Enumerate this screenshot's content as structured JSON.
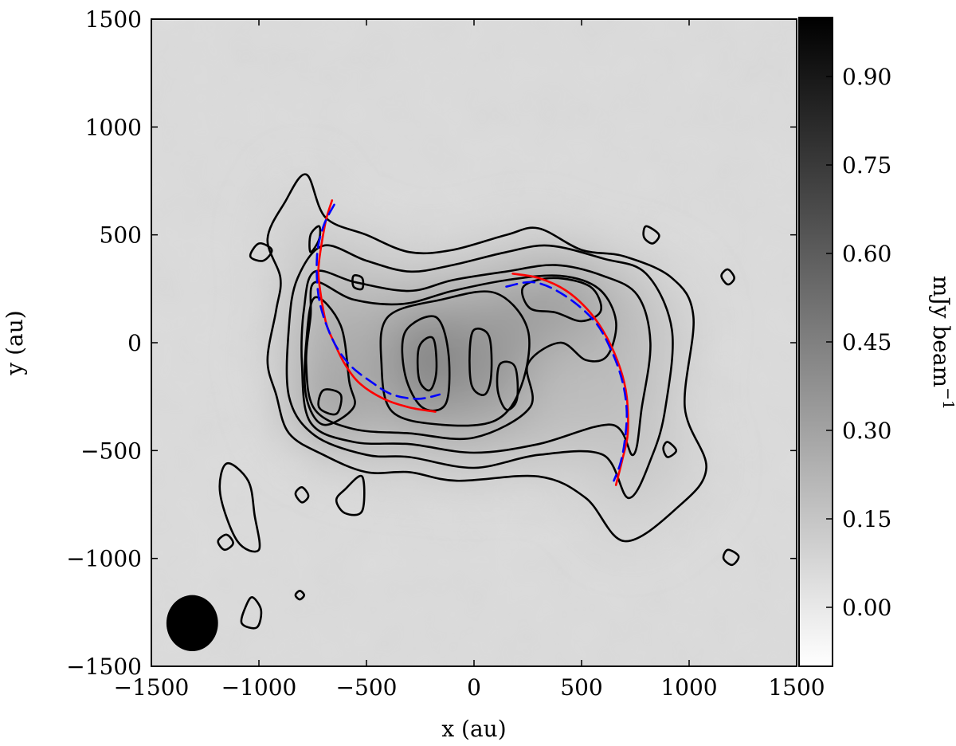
{
  "chart_data": {
    "type": "heatmap",
    "title": "",
    "xlabel": "x (au)",
    "ylabel": "y (au)",
    "xlim": [
      -1500,
      1500
    ],
    "ylim": [
      -1500,
      1500
    ],
    "xticks": [
      -1500,
      -1000,
      -500,
      0,
      500,
      1000,
      1500
    ],
    "yticks": [
      -1500,
      -1000,
      -500,
      0,
      500,
      1000,
      1500
    ],
    "xtick_labels": [
      "−1500",
      "−1000",
      "−500",
      "0",
      "500",
      "1000",
      "1500"
    ],
    "ytick_labels": [
      "−1500",
      "−1000",
      "−500",
      "0",
      "500",
      "1000",
      "1500"
    ],
    "colormap": "gray_r",
    "colorbar": {
      "label": "mJy beam",
      "label_superscript": "−1",
      "range": [
        -0.1,
        1.0
      ],
      "ticks": [
        0.0,
        0.15,
        0.3,
        0.45,
        0.6,
        0.75,
        0.9
      ],
      "tick_labels": [
        "0.00",
        "0.15",
        "0.30",
        "0.45",
        "0.60",
        "0.75",
        "0.90"
      ]
    },
    "background_level": 0.05,
    "contour_color": "#000000",
    "emission_peaks": [
      {
        "x": -220,
        "y": -80,
        "value": 0.55
      },
      {
        "x": 50,
        "y": -60,
        "value": 0.42
      },
      {
        "x": -680,
        "y": -300,
        "value": 0.38
      },
      {
        "x": 300,
        "y": 170,
        "value": 0.38
      },
      {
        "x": 480,
        "y": 200,
        "value": 0.33
      },
      {
        "x": 130,
        "y": -130,
        "value": 0.36
      }
    ],
    "contours": [
      {
        "level": 1,
        "points": [
          [
            -690,
            580
          ],
          [
            -500,
            500
          ],
          [
            -300,
            420
          ],
          [
            -100,
            430
          ],
          [
            150,
            500
          ],
          [
            300,
            530
          ],
          [
            500,
            430
          ],
          [
            700,
            400
          ],
          [
            920,
            300
          ],
          [
            1020,
            120
          ],
          [
            980,
            -300
          ],
          [
            1080,
            -580
          ],
          [
            950,
            -760
          ],
          [
            700,
            -920
          ],
          [
            520,
            -720
          ],
          [
            300,
            -620
          ],
          [
            -80,
            -640
          ],
          [
            -300,
            -600
          ],
          [
            -500,
            -600
          ],
          [
            -700,
            -520
          ],
          [
            -860,
            -420
          ],
          [
            -920,
            -240
          ],
          [
            -960,
            -80
          ],
          [
            -920,
            150
          ],
          [
            -900,
            300
          ],
          [
            -960,
            480
          ],
          [
            -880,
            650
          ],
          [
            -780,
            780
          ]
        ]
      },
      {
        "level": 2,
        "points": [
          [
            -700,
            450
          ],
          [
            -500,
            380
          ],
          [
            -300,
            330
          ],
          [
            -100,
            360
          ],
          [
            150,
            420
          ],
          [
            350,
            450
          ],
          [
            600,
            390
          ],
          [
            800,
            320
          ],
          [
            920,
            60
          ],
          [
            890,
            -300
          ],
          [
            830,
            -520
          ],
          [
            720,
            -720
          ],
          [
            600,
            -520
          ],
          [
            300,
            -520
          ],
          [
            0,
            -580
          ],
          [
            -300,
            -530
          ],
          [
            -500,
            -520
          ],
          [
            -740,
            -430
          ],
          [
            -860,
            -250
          ],
          [
            -860,
            80
          ],
          [
            -820,
            300
          ]
        ]
      },
      {
        "level": 3,
        "points": [
          [
            -740,
            330
          ],
          [
            -550,
            280
          ],
          [
            -300,
            240
          ],
          [
            -100,
            290
          ],
          [
            150,
            330
          ],
          [
            380,
            360
          ],
          [
            600,
            310
          ],
          [
            760,
            220
          ],
          [
            820,
            0
          ],
          [
            780,
            -300
          ],
          [
            740,
            -520
          ],
          [
            640,
            -380
          ],
          [
            300,
            -470
          ],
          [
            0,
            -510
          ],
          [
            -300,
            -470
          ],
          [
            -560,
            -460
          ],
          [
            -760,
            -370
          ],
          [
            -800,
            -100
          ],
          [
            -790,
            160
          ]
        ]
      },
      {
        "level": 4,
        "points": [
          [
            -740,
            280
          ],
          [
            -560,
            200
          ],
          [
            -330,
            180
          ],
          [
            -100,
            240
          ],
          [
            150,
            290
          ],
          [
            400,
            310
          ],
          [
            580,
            250
          ],
          [
            660,
            100
          ],
          [
            620,
            -60
          ],
          [
            520,
            -80
          ],
          [
            400,
            0
          ],
          [
            250,
            -100
          ],
          [
            260,
            -300
          ],
          [
            0,
            -440
          ],
          [
            -300,
            -420
          ],
          [
            -560,
            -400
          ],
          [
            -740,
            -310
          ],
          [
            -780,
            -100
          ],
          [
            -760,
            120
          ]
        ]
      },
      {
        "level": 5,
        "points": [
          [
            -740,
            210
          ],
          [
            -620,
            80
          ],
          [
            -580,
            -180
          ],
          [
            -560,
            -300
          ],
          [
            -700,
            -380
          ],
          [
            -780,
            -250
          ],
          [
            -780,
            0
          ]
        ]
      },
      {
        "level": 6,
        "points": [
          [
            -400,
            120
          ],
          [
            -150,
            200
          ],
          [
            100,
            230
          ],
          [
            250,
            60
          ],
          [
            220,
            -200
          ],
          [
            100,
            -360
          ],
          [
            -150,
            -380
          ],
          [
            -380,
            -320
          ],
          [
            -430,
            -100
          ]
        ]
      },
      {
        "level": 7,
        "points": [
          [
            -320,
            50
          ],
          [
            -180,
            120
          ],
          [
            -120,
            -40
          ],
          [
            -130,
            -280
          ],
          [
            -240,
            -300
          ],
          [
            -320,
            -150
          ]
        ]
      },
      {
        "level": 8,
        "points": [
          [
            -255,
            -20
          ],
          [
            -190,
            20
          ],
          [
            -175,
            -130
          ],
          [
            -205,
            -220
          ],
          [
            -255,
            -170
          ]
        ]
      },
      {
        "level": 9,
        "points": [
          [
            230,
            260
          ],
          [
            370,
            300
          ],
          [
            540,
            260
          ],
          [
            590,
            150
          ],
          [
            500,
            100
          ],
          [
            380,
            140
          ],
          [
            260,
            160
          ]
        ]
      },
      {
        "level": 10,
        "points": [
          [
            0,
            60
          ],
          [
            70,
            30
          ],
          [
            80,
            -150
          ],
          [
            50,
            -240
          ],
          [
            -10,
            -200
          ],
          [
            -20,
            -40
          ]
        ]
      },
      {
        "level": 11,
        "points": [
          [
            120,
            -100
          ],
          [
            190,
            -110
          ],
          [
            200,
            -260
          ],
          [
            150,
            -310
          ],
          [
            110,
            -220
          ]
        ]
      },
      {
        "level": 12,
        "points": [
          [
            -700,
            -220
          ],
          [
            -620,
            -240
          ],
          [
            -640,
            -330
          ],
          [
            -720,
            -300
          ]
        ]
      },
      {
        "level": 13,
        "points": [
          [
            -600,
            -680
          ],
          [
            -520,
            -620
          ],
          [
            -520,
            -780
          ],
          [
            -600,
            -790
          ],
          [
            -640,
            -730
          ]
        ]
      },
      {
        "level": 14,
        "points": [
          [
            -1150,
            -560
          ],
          [
            -1050,
            -640
          ],
          [
            -1020,
            -800
          ],
          [
            -1000,
            -960
          ],
          [
            -1100,
            -920
          ],
          [
            -1180,
            -700
          ]
        ]
      },
      {
        "level": 15,
        "points": [
          [
            -1030,
            -1180
          ],
          [
            -990,
            -1240
          ],
          [
            -1010,
            -1320
          ],
          [
            -1080,
            -1300
          ],
          [
            -1060,
            -1220
          ]
        ]
      },
      {
        "level": 16,
        "points": [
          [
            -1150,
            -890
          ],
          [
            -1120,
            -930
          ],
          [
            -1160,
            -960
          ],
          [
            -1190,
            -920
          ]
        ]
      },
      {
        "level": 17,
        "points": [
          [
            -760,
            420
          ],
          [
            -720,
            480
          ],
          [
            -720,
            540
          ],
          [
            -760,
            500
          ]
        ]
      },
      {
        "level": 18,
        "points": [
          [
            -1000,
            460
          ],
          [
            -940,
            430
          ],
          [
            -980,
            380
          ],
          [
            -1040,
            400
          ]
        ]
      },
      {
        "level": 19,
        "points": [
          [
            -560,
            310
          ],
          [
            -520,
            300
          ],
          [
            -520,
            250
          ],
          [
            -560,
            260
          ]
        ]
      },
      {
        "level": 20,
        "points": [
          [
            800,
            540
          ],
          [
            860,
            500
          ],
          [
            830,
            460
          ],
          [
            790,
            490
          ]
        ]
      },
      {
        "level": 21,
        "points": [
          [
            1150,
            310
          ],
          [
            1180,
            340
          ],
          [
            1210,
            300
          ],
          [
            1180,
            270
          ]
        ]
      },
      {
        "level": 22,
        "points": [
          [
            900,
            -460
          ],
          [
            940,
            -500
          ],
          [
            900,
            -530
          ],
          [
            880,
            -490
          ]
        ]
      },
      {
        "level": 23,
        "points": [
          [
            1180,
            -960
          ],
          [
            1230,
            -990
          ],
          [
            1200,
            -1030
          ],
          [
            1160,
            -1000
          ]
        ]
      },
      {
        "level": 24,
        "points": [
          [
            -800,
            -670
          ],
          [
            -770,
            -710
          ],
          [
            -800,
            -740
          ],
          [
            -830,
            -700
          ]
        ]
      },
      {
        "level": 25,
        "points": [
          [
            -810,
            -1150
          ],
          [
            -790,
            -1170
          ],
          [
            -810,
            -1190
          ],
          [
            -830,
            -1170
          ]
        ]
      }
    ],
    "fitted_arcs": [
      {
        "name": "",
        "color": "#ff0000",
        "style": "solid",
        "side": "west",
        "points": [
          [
            -660,
            660
          ],
          [
            -690,
            560
          ],
          [
            -720,
            380
          ],
          [
            -720,
            280
          ],
          [
            -690,
            100
          ],
          [
            -650,
            0
          ],
          [
            -600,
            -100
          ],
          [
            -530,
            -190
          ],
          [
            -420,
            -260
          ],
          [
            -300,
            -300
          ],
          [
            -180,
            -320
          ]
        ]
      },
      {
        "name": "",
        "color": "#0000ff",
        "style": "dashed",
        "side": "west",
        "points": [
          [
            -650,
            640
          ],
          [
            -700,
            540
          ],
          [
            -730,
            400
          ],
          [
            -720,
            200
          ],
          [
            -660,
            20
          ],
          [
            -580,
            -100
          ],
          [
            -480,
            -180
          ],
          [
            -380,
            -240
          ],
          [
            -260,
            -260
          ],
          [
            -160,
            -240
          ]
        ]
      },
      {
        "name": "",
        "color": "#ff0000",
        "style": "solid",
        "side": "east",
        "points": [
          [
            180,
            320
          ],
          [
            300,
            300
          ],
          [
            430,
            240
          ],
          [
            540,
            140
          ],
          [
            620,
            20
          ],
          [
            680,
            -120
          ],
          [
            710,
            -250
          ],
          [
            715,
            -420
          ],
          [
            690,
            -540
          ],
          [
            660,
            -660
          ]
        ]
      },
      {
        "name": "",
        "color": "#0000ff",
        "style": "dashed",
        "side": "east",
        "points": [
          [
            150,
            260
          ],
          [
            280,
            280
          ],
          [
            420,
            220
          ],
          [
            560,
            100
          ],
          [
            640,
            -40
          ],
          [
            690,
            -180
          ],
          [
            710,
            -320
          ],
          [
            700,
            -460
          ],
          [
            680,
            -560
          ],
          [
            650,
            -640
          ]
        ]
      }
    ],
    "beam": {
      "x": -1310,
      "y": -1300,
      "major": 130,
      "minor": 120,
      "color": "#000000"
    }
  }
}
